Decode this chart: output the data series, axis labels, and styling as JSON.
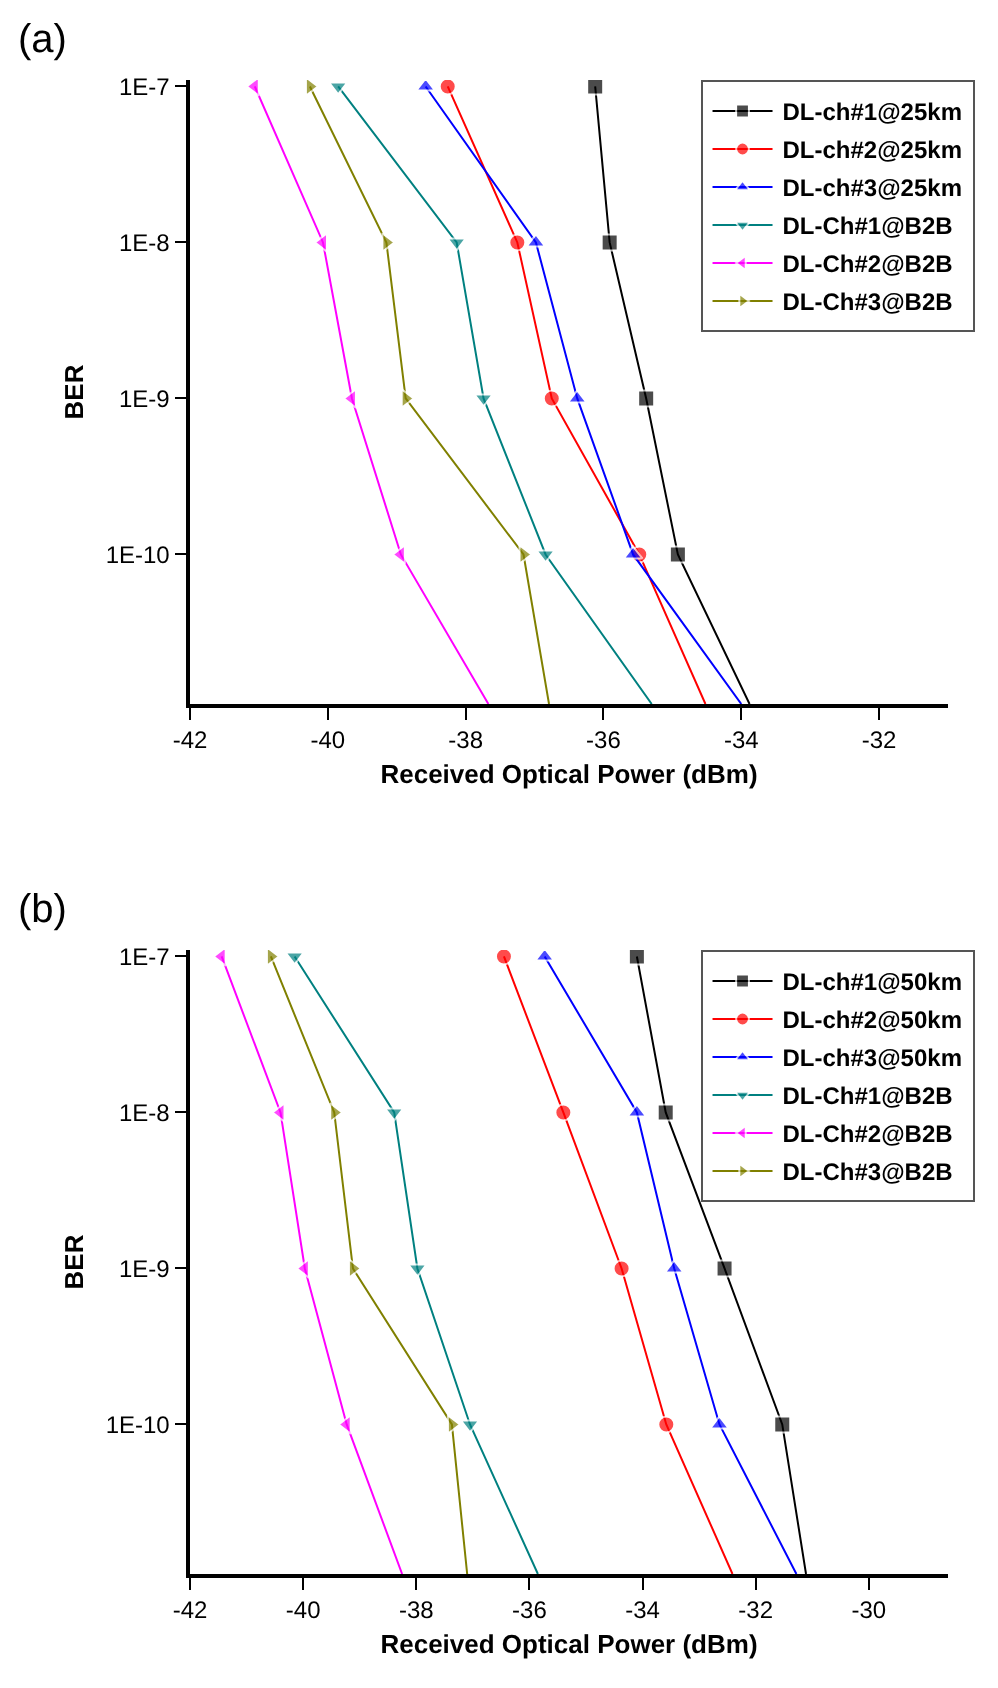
{
  "chart_data": [
    {
      "type": "line",
      "title": "(a)",
      "xlabel": "Received Optical Power (dBm)",
      "ylabel": "BER",
      "log": "y",
      "legend": "top right",
      "line_style": "solid",
      "xlim": [
        -42,
        -31
      ],
      "xticks": [
        -42,
        -40,
        -38,
        -36,
        -34,
        -32
      ],
      "ylim": [
        1.1e-11,
        1.1e-07
      ],
      "yticks": [
        {
          "value": 1e-07,
          "label": "1E-7"
        },
        {
          "value": 1e-08,
          "label": "1E-8"
        },
        {
          "value": 1e-09,
          "label": "1E-9"
        },
        {
          "value": 1e-10,
          "label": "1E-10"
        }
      ],
      "series": [
        {
          "name": "DL-ch#1@25km",
          "color": "#000000",
          "marker": "square",
          "x": [
            -36.12,
            -35.91,
            -35.38,
            -34.92,
            -33.88
          ],
          "values": [
            1e-07,
            1e-08,
            1e-09,
            1e-10,
            1.1e-11
          ]
        },
        {
          "name": "DL-ch#2@25km",
          "color": "#ff0000",
          "marker": "circle",
          "x": [
            -38.26,
            -37.25,
            -36.75,
            -35.48,
            -34.52
          ],
          "values": [
            1e-07,
            1e-08,
            1e-09,
            1e-10,
            1.1e-11
          ]
        },
        {
          "name": "DL-ch#3@25km",
          "color": "#0000ff",
          "marker": "triangle-up",
          "x": [
            -38.58,
            -36.98,
            -36.38,
            -35.57,
            -34.0
          ],
          "values": [
            1e-07,
            1e-08,
            1e-09,
            1e-10,
            1.1e-11
          ]
        },
        {
          "name": "DL-Ch#1@B2B",
          "color": "#008080",
          "marker": "triangle-down",
          "x": [
            -39.85,
            -38.13,
            -37.74,
            -36.84,
            -35.3
          ],
          "values": [
            1e-07,
            1e-08,
            1e-09,
            1e-10,
            1.1e-11
          ]
        },
        {
          "name": "DL-Ch#2@B2B",
          "color": "#ff00ff",
          "marker": "triangle-left",
          "x": [
            -41.06,
            -40.07,
            -39.65,
            -38.94,
            -37.67
          ],
          "values": [
            1e-07,
            1e-08,
            1e-09,
            1e-10,
            1.1e-11
          ]
        },
        {
          "name": "DL-Ch#3@B2B",
          "color": "#808000",
          "marker": "triangle-right",
          "x": [
            -40.26,
            -39.15,
            -38.87,
            -37.16,
            -36.79
          ],
          "values": [
            1e-07,
            1e-08,
            1e-09,
            1e-10,
            1.1e-11
          ]
        }
      ]
    },
    {
      "type": "line",
      "title": "(b)",
      "xlabel": "Received Optical Power (dBm)",
      "ylabel": "BER",
      "log": "y",
      "legend": "top right",
      "line_style": "solid",
      "xlim": [
        -42,
        -28.6
      ],
      "xticks": [
        -42,
        -40,
        -38,
        -36,
        -34,
        -32,
        -30
      ],
      "ylim": [
        1.1e-11,
        1.1e-07
      ],
      "yticks": [
        {
          "value": 1e-07,
          "label": "1E-7"
        },
        {
          "value": 1e-08,
          "label": "1E-8"
        },
        {
          "value": 1e-09,
          "label": "1E-9"
        },
        {
          "value": 1e-10,
          "label": "1E-10"
        }
      ],
      "series": [
        {
          "name": "DL-ch#1@50km",
          "color": "#000000",
          "marker": "square",
          "x": [
            -34.1,
            -33.59,
            -32.55,
            -31.53,
            -31.11
          ],
          "values": [
            1e-07,
            1e-08,
            1e-09,
            1e-10,
            1.1e-11
          ]
        },
        {
          "name": "DL-ch#2@50km",
          "color": "#ff0000",
          "marker": "circle",
          "x": [
            -36.45,
            -35.4,
            -34.37,
            -33.58,
            -32.41
          ],
          "values": [
            1e-07,
            1e-08,
            1e-09,
            1e-10,
            1.1e-11
          ]
        },
        {
          "name": "DL-ch#3@50km",
          "color": "#0000ff",
          "marker": "triangle-up",
          "x": [
            -35.73,
            -34.1,
            -33.44,
            -32.64,
            -31.28
          ],
          "values": [
            1e-07,
            1e-08,
            1e-09,
            1e-10,
            1.1e-11
          ]
        },
        {
          "name": "DL-Ch#1@B2B",
          "color": "#008080",
          "marker": "triangle-down",
          "x": [
            -40.15,
            -38.39,
            -37.98,
            -37.05,
            -35.85
          ],
          "values": [
            1e-07,
            1e-08,
            1e-09,
            1e-10,
            1.1e-11
          ]
        },
        {
          "name": "DL-Ch#2@B2B",
          "color": "#ff00ff",
          "marker": "triangle-left",
          "x": [
            -41.44,
            -40.4,
            -39.97,
            -39.23,
            -38.25
          ],
          "values": [
            1e-07,
            1e-08,
            1e-09,
            1e-10,
            1.1e-11
          ]
        },
        {
          "name": "DL-Ch#3@B2B",
          "color": "#808000",
          "marker": "triangle-right",
          "x": [
            -40.57,
            -39.45,
            -39.12,
            -37.37,
            -37.1
          ],
          "values": [
            1e-07,
            1e-08,
            1e-09,
            1e-10,
            1.1e-11
          ]
        }
      ]
    }
  ]
}
